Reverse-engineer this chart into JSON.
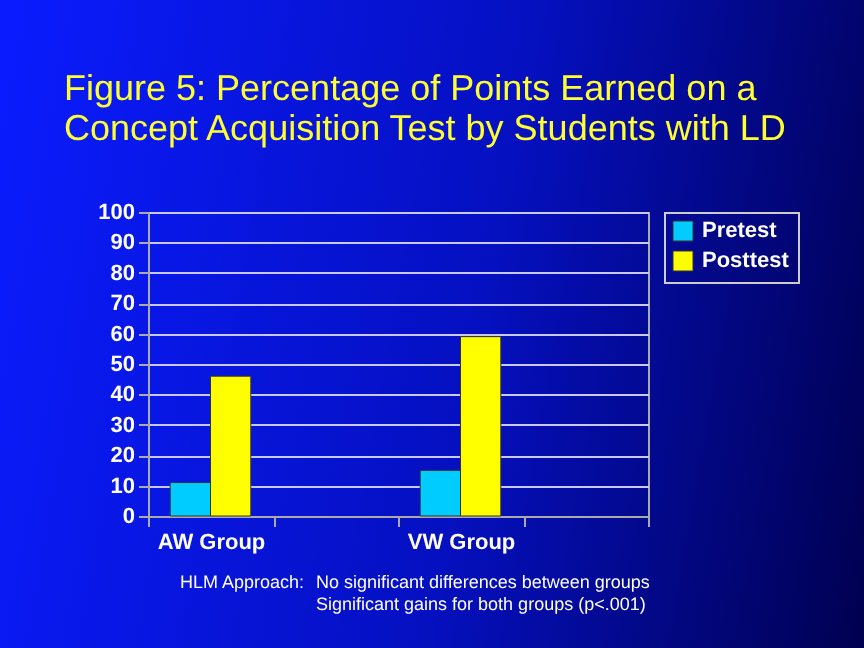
{
  "chart_data": {
    "type": "bar",
    "title": "Figure 5: Percentage of Points Earned on a\nConcept Acquisition Test by Students with LD",
    "categories": [
      "AW Group",
      null,
      "VW Group",
      null
    ],
    "series": [
      {
        "name": "Pretest",
        "color": "#00ccff",
        "values": [
          11,
          null,
          15,
          null
        ]
      },
      {
        "name": "Posttest",
        "color": "#ffff00",
        "values": [
          46,
          null,
          59,
          null
        ]
      }
    ],
    "ylim": [
      0,
      100
    ],
    "yticks": [
      0,
      10,
      20,
      30,
      40,
      50,
      60,
      70,
      80,
      90,
      100
    ],
    "grid": "y",
    "legend": "right",
    "annotations": [
      "HLM Approach:",
      "No significant differences between groups\nSignificant gains for both groups (p<.001)"
    ]
  }
}
